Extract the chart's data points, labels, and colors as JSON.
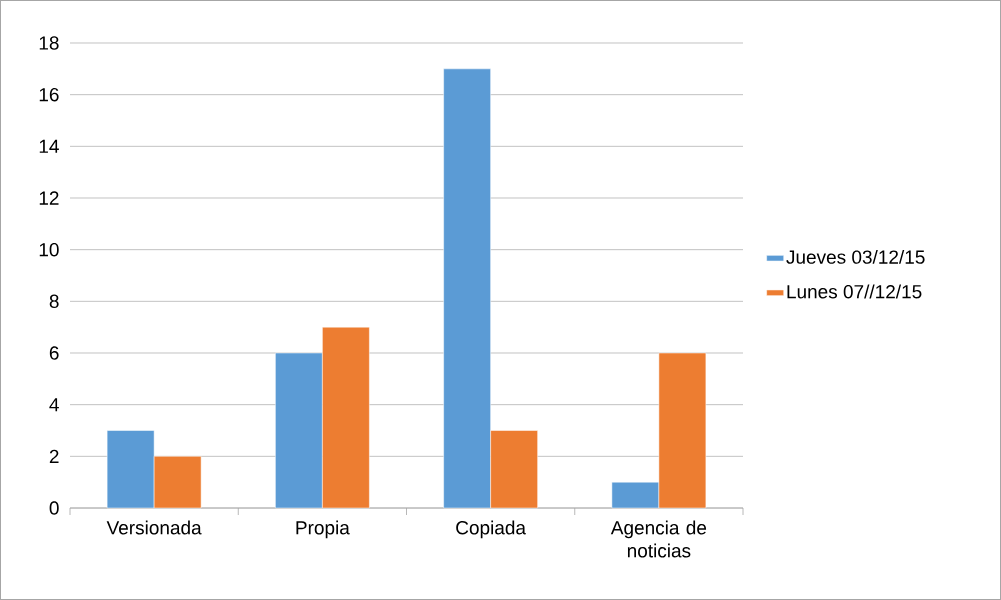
{
  "chart_data": {
    "type": "bar",
    "categories": [
      "Versionada",
      "Propia",
      "Copiada",
      "Agencia de noticias"
    ],
    "series": [
      {
        "name": "Jueves 03/12/15",
        "color": "#5b9bd5",
        "values": [
          3,
          6,
          17,
          1
        ]
      },
      {
        "name": "Lunes 07//12/15",
        "color": "#ed7d31",
        "values": [
          2,
          7,
          3,
          6
        ]
      }
    ],
    "ylim": [
      0,
      18
    ],
    "yticks": [
      0,
      2,
      4,
      6,
      8,
      10,
      12,
      14,
      16,
      18
    ],
    "grid": "y",
    "legend": "right"
  }
}
